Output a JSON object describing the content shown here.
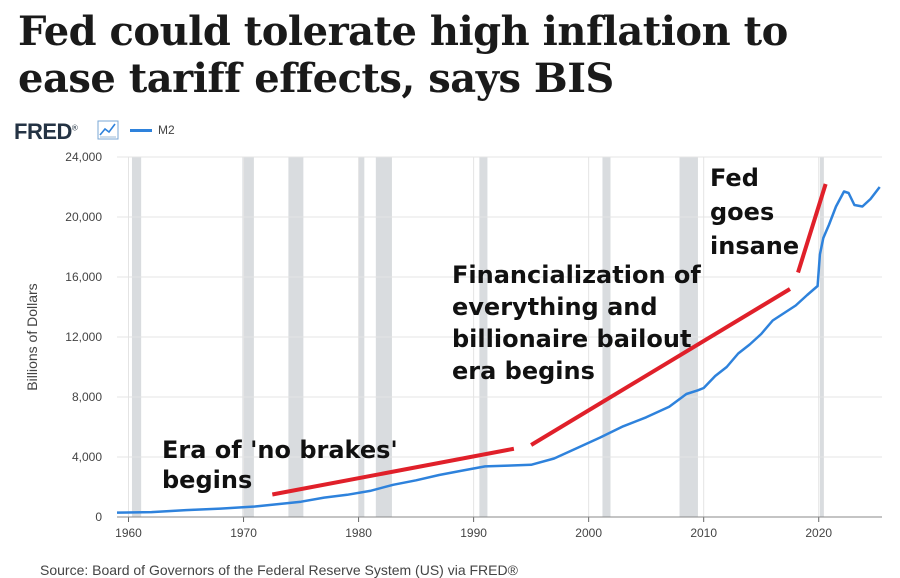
{
  "headline": {
    "line1": "Fed could tolerate high inflation to",
    "line2": "ease tariff effects, says BIS"
  },
  "fred": {
    "logo_text": "FRED",
    "logo_mark": "®",
    "icon": "chart-line-icon",
    "legend_label": "M2",
    "source_text": "Source: Board of Governors of the Federal Reserve System (US) via FRED®"
  },
  "colors": {
    "series": "#2e82dc",
    "annotation": "#e0202a",
    "recession": "#d9dcdf",
    "grid": "#e4e4e4"
  },
  "chart_data": {
    "type": "line",
    "title": "",
    "xlabel": "",
    "ylabel": "Billions of Dollars",
    "xlim": [
      1959,
      2025.5
    ],
    "ylim": [
      0,
      24000
    ],
    "x_ticks": [
      1960,
      1970,
      1980,
      1990,
      2000,
      2010,
      2020
    ],
    "y_ticks": [
      0,
      4000,
      8000,
      12000,
      16000,
      20000,
      24000
    ],
    "y_tick_labels": [
      "0",
      "4,000",
      "8,000",
      "12,000",
      "16,000",
      "20,000",
      "24,000"
    ],
    "grid": true,
    "recessions": [
      [
        1960.3,
        1961.1
      ],
      [
        1969.9,
        1970.9
      ],
      [
        1973.9,
        1975.2
      ],
      [
        1980.0,
        1980.5
      ],
      [
        1981.5,
        1982.9
      ],
      [
        1990.5,
        1991.2
      ],
      [
        2001.2,
        2001.9
      ],
      [
        2007.9,
        2009.5
      ],
      [
        2020.1,
        2020.4
      ]
    ],
    "series": [
      {
        "name": "M2",
        "x": [
          1959,
          1962,
          1965,
          1968,
          1971,
          1973,
          1975,
          1977,
          1979,
          1981,
          1983,
          1985,
          1987,
          1989,
          1991,
          1993,
          1995,
          1997,
          1999,
          2001,
          2003,
          2005,
          2007,
          2008.5,
          2009.5,
          2010,
          2011,
          2012,
          2013,
          2014,
          2015,
          2016,
          2017,
          2018,
          2019,
          2019.9,
          2020.1,
          2020.4,
          2020.9,
          2021.5,
          2022.2,
          2022.6,
          2023.1,
          2023.8,
          2024.5,
          2025.3
        ],
        "values": [
          290,
          330,
          460,
          560,
          700,
          860,
          1020,
          1290,
          1480,
          1740,
          2150,
          2450,
          2800,
          3090,
          3370,
          3430,
          3480,
          3900,
          4600,
          5300,
          6050,
          6650,
          7350,
          8200,
          8450,
          8600,
          9400,
          10000,
          10900,
          11500,
          12200,
          13100,
          13600,
          14100,
          14800,
          15400,
          17500,
          18600,
          19500,
          20700,
          21700,
          21600,
          20800,
          20700,
          21200,
          22000
        ]
      }
    ],
    "annotations": [
      {
        "text_lines": [
          "Era of 'no brakes'",
          "begins"
        ],
        "arrow_from": [
          1972.5,
          1500
        ],
        "arrow_to": [
          1993.5,
          4550
        ]
      },
      {
        "text_lines": [
          "Financialization of",
          "everything and",
          "billionaire bailout",
          "era begins"
        ],
        "arrow_from": [
          1995,
          4800
        ],
        "arrow_to": [
          2017.5,
          15200
        ]
      },
      {
        "text_lines": [
          "Fed",
          "goes",
          "insane"
        ],
        "arrow_from": [
          2018.2,
          16300
        ],
        "arrow_to": [
          2020.6,
          22200
        ]
      }
    ]
  }
}
